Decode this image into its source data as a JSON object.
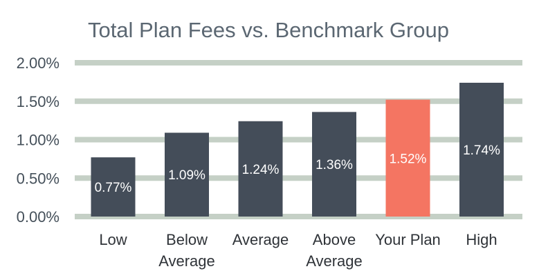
{
  "chart_data": {
    "type": "bar",
    "title": "Total Plan Fees vs. Benchmark Group",
    "categories": [
      [
        "Low"
      ],
      [
        "Below",
        "Average"
      ],
      [
        "Average"
      ],
      [
        "Above",
        "Average"
      ],
      [
        "Your Plan"
      ],
      [
        "High"
      ]
    ],
    "values": [
      0.77,
      1.09,
      1.24,
      1.36,
      1.52,
      1.74
    ],
    "data_labels": [
      "0.77%",
      "1.09%",
      "1.24%",
      "1.36%",
      "1.52%",
      "1.74%"
    ],
    "yticks": [
      0,
      0.5,
      1.0,
      1.5,
      2.0
    ],
    "ytick_labels": [
      "0.00%",
      "0.50%",
      "1.00%",
      "1.50%",
      "2.00%"
    ],
    "ylim": [
      0,
      2.0
    ],
    "grid": true,
    "legend": false,
    "colors": {
      "bar": "#444d59",
      "highlight": "#f47562",
      "grid": "#c5d0c6",
      "title": "#5b6772"
    },
    "highlight_index": 4
  }
}
